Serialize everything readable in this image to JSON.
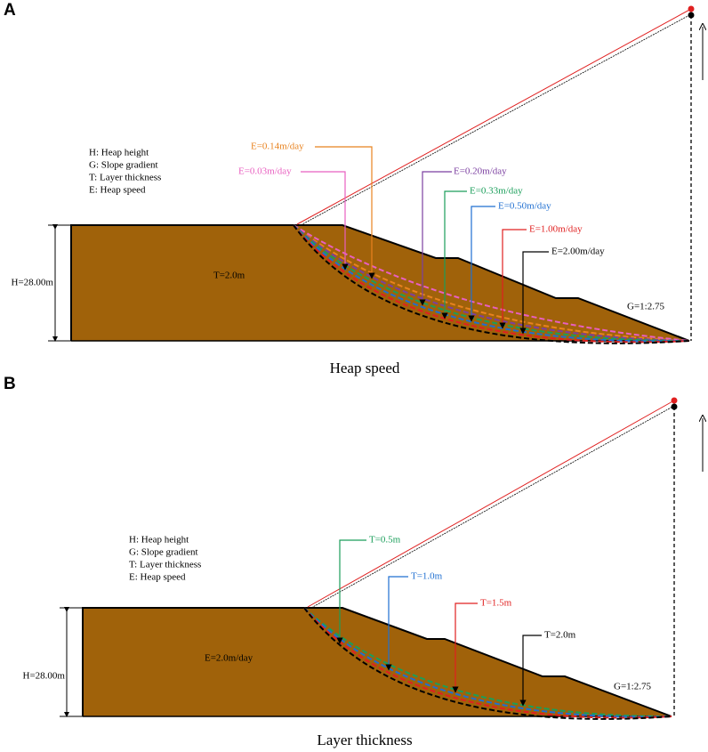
{
  "panels": [
    {
      "panel_label": "A",
      "caption": "Heap speed",
      "legend": [
        "H: Heap height",
        "G: Slope gradient",
        "T: Layer thickness",
        "E: Heap speed"
      ],
      "height_label": "H=28.00m",
      "inner_label": "T=2.0m",
      "slope_label": "G=1:2.75",
      "curves": [
        {
          "label": "E=0.14m/day",
          "color": "#e8821e"
        },
        {
          "label": "E=0.03m/day",
          "color": "#e85fc0"
        },
        {
          "label": "E=0.20m/day",
          "color": "#7b3fa0"
        },
        {
          "label": "E=0.33m/day",
          "color": "#1a9e5a"
        },
        {
          "label": "E=0.50m/day",
          "color": "#1f6fd1"
        },
        {
          "label": "E=1.00m/day",
          "color": "#e02020"
        },
        {
          "label": "E=2.00m/day",
          "color": "#000000"
        }
      ]
    },
    {
      "panel_label": "B",
      "caption": "Layer thickness",
      "legend": [
        "H: Heap height",
        "G: Slope gradient",
        "T: Layer thickness",
        "E: Heap speed"
      ],
      "height_label": "H=28.00m",
      "inner_label": "E=2.0m/day",
      "slope_label": "G=1:2.75",
      "curves": [
        {
          "label": "T=0.5m",
          "color": "#1a9e5a"
        },
        {
          "label": "T=1.0m",
          "color": "#1f6fd1"
        },
        {
          "label": "T=1.5m",
          "color": "#e02020"
        },
        {
          "label": "T=2.0m",
          "color": "#000000"
        }
      ]
    }
  ]
}
